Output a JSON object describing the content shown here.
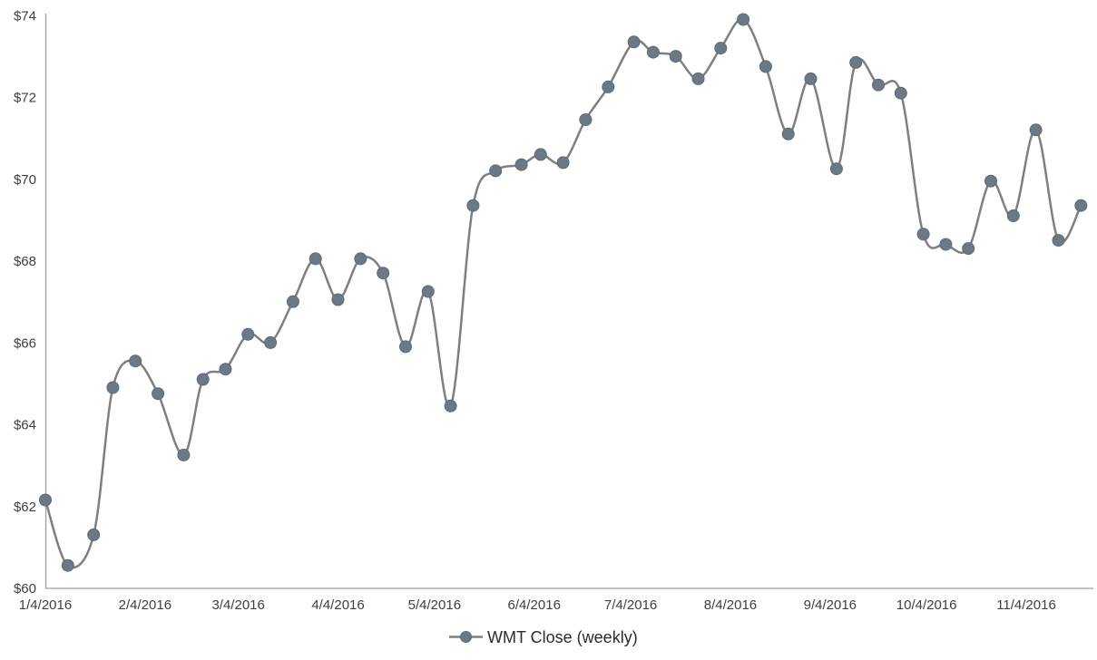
{
  "chart_data": {
    "type": "line",
    "title": "",
    "smooth": true,
    "grid": false,
    "legend_position": "bottom-center",
    "x": [
      "1/4/2016",
      "1/11/2016",
      "1/19/2016",
      "1/25/2016",
      "2/1/2016",
      "2/8/2016",
      "2/16/2016",
      "2/22/2016",
      "2/29/2016",
      "3/7/2016",
      "3/14/2016",
      "3/21/2016",
      "3/28/2016",
      "4/4/2016",
      "4/11/2016",
      "4/18/2016",
      "4/25/2016",
      "5/2/2016",
      "5/9/2016",
      "5/16/2016",
      "5/23/2016",
      "5/31/2016",
      "6/6/2016",
      "6/13/2016",
      "6/20/2016",
      "6/27/2016",
      "7/5/2016",
      "7/11/2016",
      "7/18/2016",
      "7/25/2016",
      "8/1/2016",
      "8/8/2016",
      "8/15/2016",
      "8/22/2016",
      "8/29/2016",
      "9/6/2016",
      "9/12/2016",
      "9/19/2016",
      "9/26/2016",
      "10/3/2016",
      "10/10/2016",
      "10/17/2016",
      "10/24/2016",
      "10/31/2016",
      "11/7/2016",
      "11/14/2016",
      "11/21/2016"
    ],
    "series": [
      {
        "name": "WMT Close (weekly)",
        "values": [
          62.15,
          60.55,
          61.3,
          64.9,
          65.55,
          64.75,
          63.25,
          65.1,
          65.35,
          66.2,
          66.0,
          67.0,
          68.05,
          67.05,
          68.05,
          67.7,
          65.9,
          67.25,
          64.45,
          69.35,
          70.2,
          70.35,
          70.6,
          70.4,
          71.45,
          72.25,
          73.35,
          73.1,
          73.0,
          72.45,
          73.2,
          73.9,
          72.75,
          71.1,
          72.45,
          70.25,
          72.85,
          72.3,
          72.1,
          68.65,
          68.4,
          68.3,
          69.95,
          69.1,
          71.2,
          68.5,
          69.35
        ]
      }
    ],
    "x_axis": {
      "tick_labels": [
        "1/4/2016",
        "2/4/2016",
        "3/4/2016",
        "4/4/2016",
        "5/4/2016",
        "6/4/2016",
        "7/4/2016",
        "8/4/2016",
        "9/4/2016",
        "10/4/2016",
        "11/4/2016"
      ]
    },
    "y_axis": {
      "min": 60,
      "max": 74,
      "step": 2,
      "tick_labels": [
        "$60",
        "$62",
        "$64",
        "$66",
        "$68",
        "$70",
        "$72",
        "$74"
      ]
    },
    "colors": {
      "line": "#7f7f7f",
      "marker_fill": "#6b7886",
      "marker_stroke": "#5d6a77",
      "axis_line": "#9d9d9d",
      "axis_text": "#3f3f3f",
      "legend_text": "#2b2b2b"
    }
  }
}
